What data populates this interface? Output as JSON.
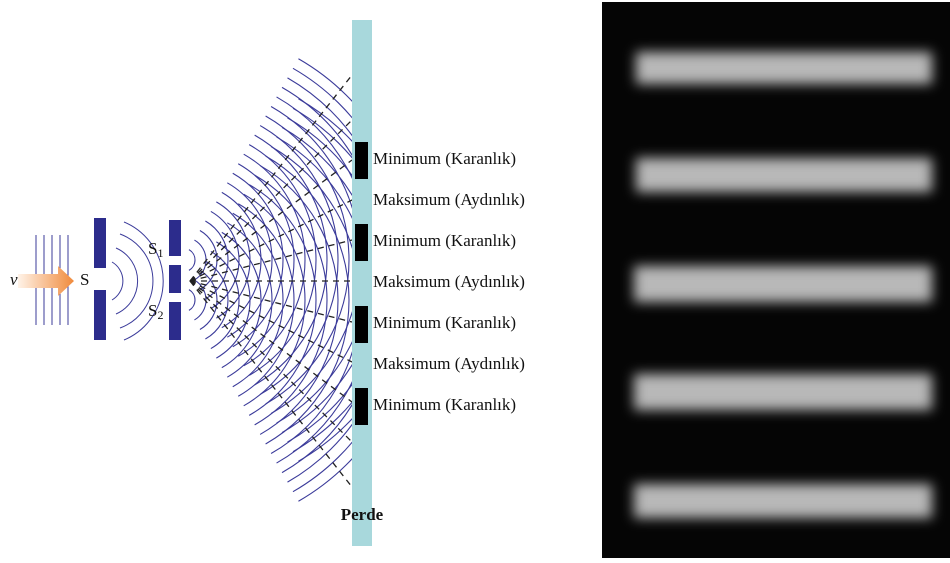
{
  "incident_wave": {
    "label": "v"
  },
  "source": {
    "label": "S"
  },
  "slits": [
    {
      "letter": "S",
      "sub": "1"
    },
    {
      "letter": "S",
      "sub": "2"
    }
  ],
  "screen": {
    "label": "Perde"
  },
  "fringes": [
    "Minimum (Karanlık)",
    "Maksimum (Aydınlık)",
    "Minimum (Karanlık)",
    "Maksimum (Aydınlık)",
    "Minimum (Karanlık)",
    "Maksimum (Aydınlık)",
    "Minimum (Karanlık)"
  ]
}
